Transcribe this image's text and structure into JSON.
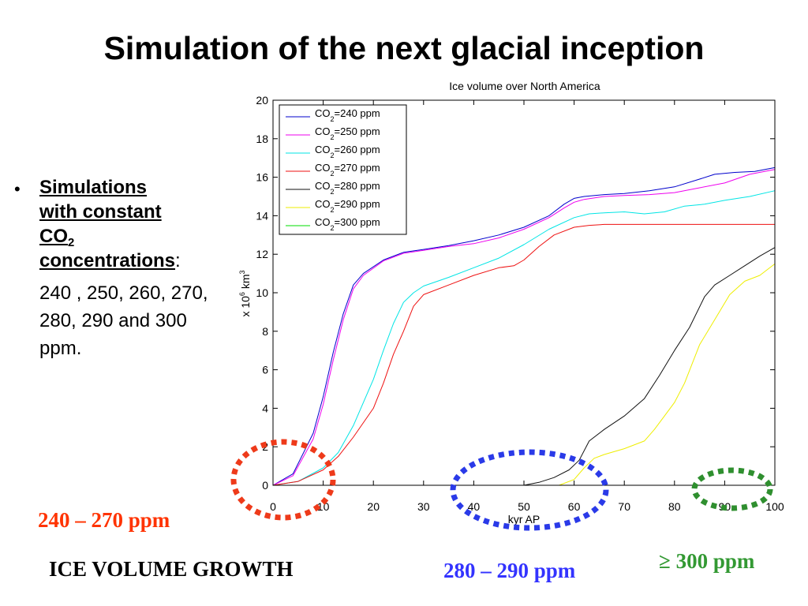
{
  "slide": {
    "title": "Simulation of the next glacial inception",
    "bullet": {
      "marker": "•",
      "heading_line1": "Simulations",
      "heading_line2": "with constant",
      "heading_co": "CO",
      "heading_sub": "2",
      "heading_line4": "concentrations",
      "colon": ":",
      "values_text": "240 , 250, 260, 270, 280, 290 and 300 ppm."
    },
    "labels": {
      "range_low": "240 – 270 ppm",
      "range_mid": "280 – 290 ppm",
      "range_high": "≥ 300 ppm",
      "ice_growth": "ICE VOLUME GROWTH"
    },
    "colors": {
      "red_label": "#ff3300",
      "blue_label": "#3333ff",
      "green_label": "#339933",
      "ellipse_red": "#ee3a1a",
      "ellipse_blue": "#2a3ae8",
      "ellipse_green": "#2f8f2f"
    }
  },
  "chart_data": {
    "type": "line",
    "title": "Ice volume over North America",
    "xlabel": "kyr AP",
    "ylabel_base": "x 10",
    "ylabel_exp1": "6",
    "ylabel_unit": " km",
    "ylabel_exp2": "3",
    "xlim": [
      0,
      100
    ],
    "ylim": [
      -0.5,
      20
    ],
    "xticks": [
      0,
      10,
      20,
      30,
      40,
      50,
      60,
      70,
      80,
      90,
      100
    ],
    "yticks": [
      0,
      2,
      4,
      6,
      8,
      10,
      12,
      14,
      16,
      18,
      20
    ],
    "legend_position": "top-left",
    "legend_prefix": "CO",
    "legend_sub": "2",
    "series": [
      {
        "name": "=240 ppm",
        "color": "#0000cc",
        "x": [
          0,
          4,
          8,
          10,
          12,
          14,
          16,
          18,
          22,
          26,
          30,
          35,
          40,
          45,
          50,
          55,
          58,
          60,
          62,
          66,
          70,
          75,
          80,
          85,
          88,
          92,
          96,
          100
        ],
        "y": [
          0,
          0.6,
          2.7,
          4.6,
          6.9,
          8.9,
          10.4,
          11.0,
          11.7,
          12.1,
          12.25,
          12.45,
          12.7,
          13.0,
          13.4,
          14.0,
          14.6,
          14.9,
          15.0,
          15.1,
          15.15,
          15.3,
          15.5,
          15.9,
          16.15,
          16.25,
          16.3,
          16.5
        ]
      },
      {
        "name": "=250 ppm",
        "color": "#ee00ee",
        "x": [
          0,
          4,
          8,
          10,
          12,
          14,
          16,
          18,
          22,
          26,
          30,
          35,
          40,
          45,
          50,
          55,
          58,
          60,
          62,
          66,
          70,
          75,
          80,
          85,
          90,
          95,
          100
        ],
        "y": [
          0,
          0.5,
          2.4,
          4.2,
          6.5,
          8.6,
          10.2,
          10.9,
          11.65,
          12.05,
          12.2,
          12.4,
          12.55,
          12.85,
          13.3,
          13.9,
          14.4,
          14.7,
          14.85,
          15.0,
          15.05,
          15.1,
          15.2,
          15.45,
          15.7,
          16.15,
          16.4
        ]
      },
      {
        "name": "=260 ppm",
        "color": "#00e5e5",
        "x": [
          0,
          5,
          10,
          13,
          16,
          20,
          22,
          24,
          26,
          28,
          30,
          35,
          40,
          45,
          50,
          55,
          60,
          63,
          66,
          70,
          74,
          78,
          82,
          86,
          90,
          95,
          100
        ],
        "y": [
          0,
          0.2,
          0.9,
          1.7,
          3.1,
          5.5,
          7.0,
          8.4,
          9.5,
          10.0,
          10.35,
          10.8,
          11.3,
          11.8,
          12.5,
          13.3,
          13.9,
          14.1,
          14.15,
          14.2,
          14.1,
          14.2,
          14.5,
          14.6,
          14.8,
          15.0,
          15.3
        ]
      },
      {
        "name": "=270 ppm",
        "color": "#ee1111",
        "x": [
          0,
          5,
          10,
          13,
          16,
          20,
          22,
          24,
          26,
          28,
          30,
          35,
          40,
          45,
          48,
          50,
          53,
          56,
          60,
          63,
          66,
          70,
          80,
          90,
          100
        ],
        "y": [
          0,
          0.2,
          0.8,
          1.5,
          2.5,
          4.0,
          5.3,
          6.8,
          8.0,
          9.3,
          9.9,
          10.4,
          10.9,
          11.3,
          11.4,
          11.7,
          12.4,
          13.0,
          13.4,
          13.5,
          13.55,
          13.55,
          13.55,
          13.55,
          13.55
        ]
      },
      {
        "name": "=280 ppm",
        "color": "#111111",
        "x": [
          0,
          50,
          53,
          56,
          59,
          61,
          63,
          66,
          70,
          74,
          77,
          80,
          83,
          86,
          88,
          91,
          94,
          97,
          100
        ],
        "y": [
          0,
          0,
          0.15,
          0.4,
          0.8,
          1.3,
          2.3,
          2.9,
          3.6,
          4.5,
          5.7,
          7.0,
          8.2,
          9.8,
          10.4,
          10.9,
          11.4,
          11.9,
          12.35
        ]
      },
      {
        "name": "=290 ppm",
        "color": "#eeee00",
        "x": [
          0,
          57,
          60,
          62,
          64,
          66,
          70,
          74,
          76,
          78,
          80,
          82,
          85,
          88,
          91,
          94,
          97,
          100
        ],
        "y": [
          0,
          0,
          0.3,
          0.9,
          1.4,
          1.6,
          1.9,
          2.3,
          2.9,
          3.6,
          4.3,
          5.3,
          7.3,
          8.6,
          9.9,
          10.6,
          10.9,
          11.5
        ]
      },
      {
        "name": "=300 ppm",
        "color": "#00dd00",
        "x": [
          0,
          100
        ],
        "y": [
          0,
          0
        ]
      }
    ]
  }
}
